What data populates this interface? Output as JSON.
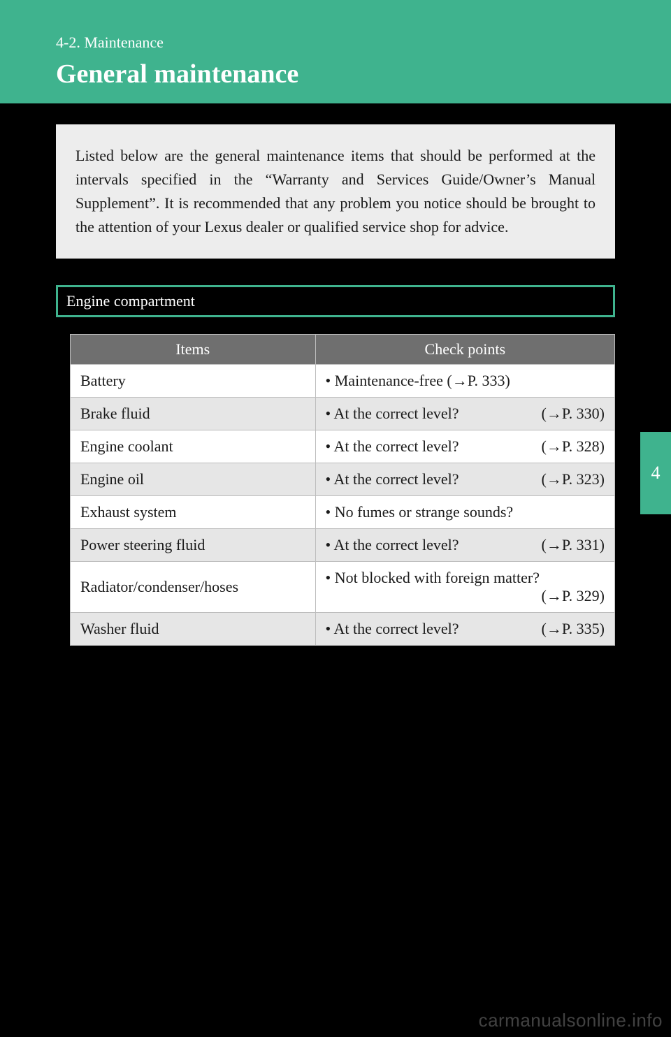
{
  "header": {
    "section_label": "4-2. Maintenance",
    "title": "General maintenance"
  },
  "intro": {
    "text": "Listed below are the general maintenance items that should be performed at the intervals specified in the “Warranty and Services Guide/Owner’s Manual Supplement”. It is recommended that any problem you notice should be brought to the attention of your Lexus dealer or qualified service shop for advice."
  },
  "subheading": "Engine compartment",
  "table": {
    "columns": [
      "Items",
      "Check points"
    ],
    "rows": [
      {
        "item": "Battery",
        "check": "• Maintenance-free (→P. 333)",
        "ref": ""
      },
      {
        "item": "Brake fluid",
        "check": "• At the correct level?",
        "ref": "(→P. 330)"
      },
      {
        "item": "Engine coolant",
        "check": "• At the correct level?",
        "ref": "(→P. 328)"
      },
      {
        "item": "Engine oil",
        "check": "• At the correct level?",
        "ref": "(→P. 323)"
      },
      {
        "item": "Exhaust system",
        "check": "• No fumes or strange sounds?",
        "ref": ""
      },
      {
        "item": "Power steering fluid",
        "check": "• At the correct level?",
        "ref": "(→P. 331)"
      },
      {
        "item": "Radiator/condenser/hoses",
        "check": "• Not blocked with foreign matter?",
        "ref": "(→P. 329)",
        "stack": true
      },
      {
        "item": "Washer fluid",
        "check": "• At the correct level?",
        "ref": "(→P. 335)"
      }
    ]
  },
  "side_tab": "4",
  "watermark": "carmanualsonline.info",
  "colors": {
    "brand": "#3fb38e",
    "background": "#000000",
    "intro_bg": "#ededed",
    "table_header_bg": "#6f6f6f",
    "row_odd": "#ffffff",
    "row_even": "#e6e6e6",
    "border": "#bdbdbd",
    "text": "#1a1a1a",
    "white": "#ffffff"
  }
}
